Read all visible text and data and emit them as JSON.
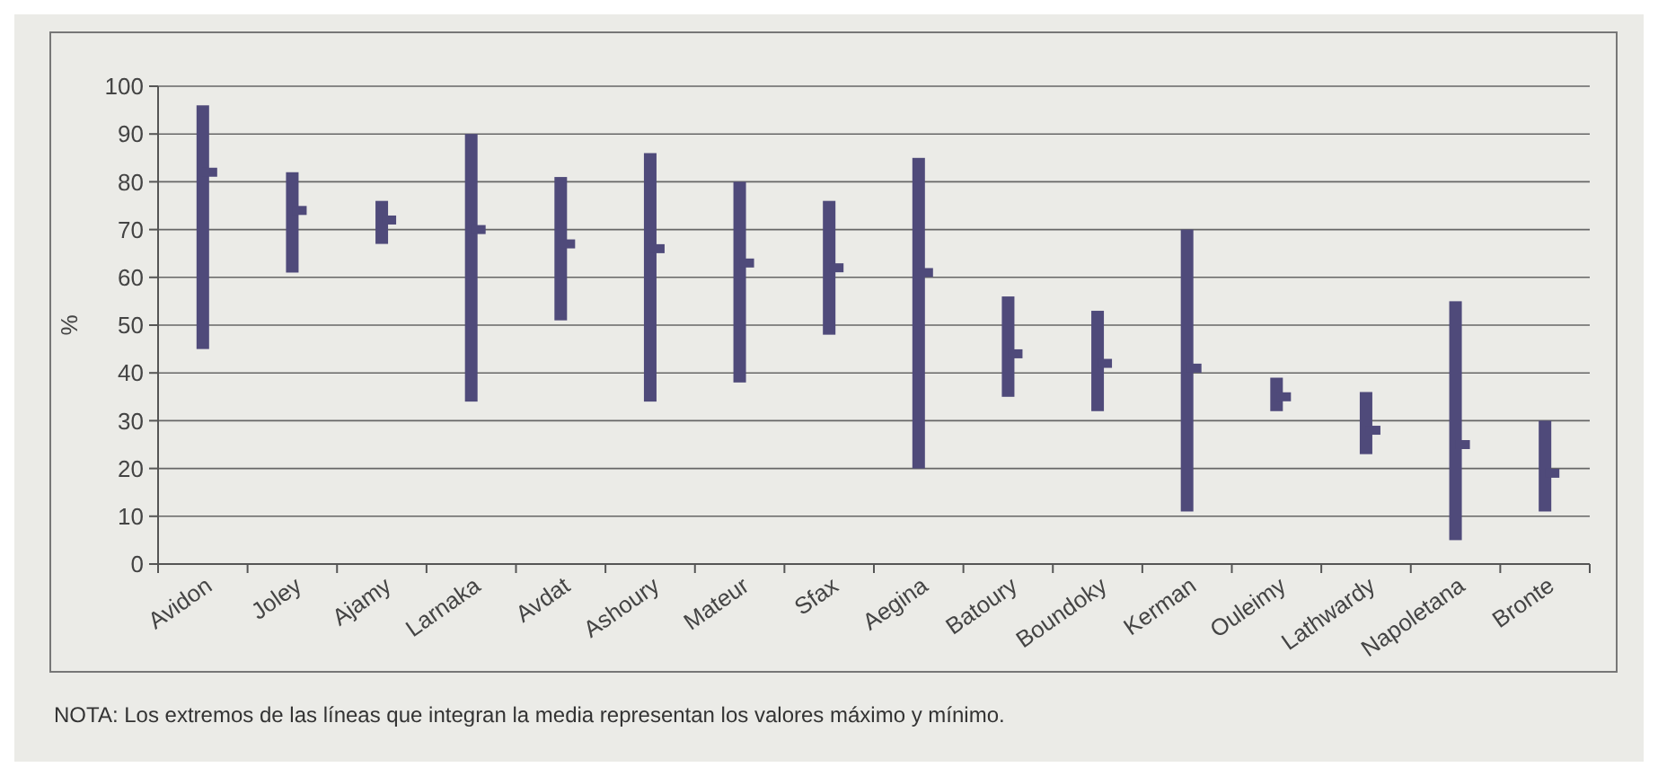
{
  "chart_data": {
    "type": "bar",
    "ylabel": "%",
    "categories": [
      "Avidon",
      "Joley",
      "Ajamy",
      "Larnaka",
      "Avdat",
      "Ashoury",
      "Mateur",
      "Sfax",
      "Aegina",
      "Batoury",
      "Boundoky",
      "Kerman",
      "Ouleimy",
      "Lathwardy",
      "Napoletana",
      "Bronte"
    ],
    "series": [
      {
        "type": "bar",
        "color": "#4f4a7a",
        "base": [
          45,
          61,
          67,
          34,
          51,
          34,
          38,
          48,
          20,
          35,
          32,
          11,
          32,
          23,
          5,
          11
        ],
        "values": [
          51,
          21,
          9,
          56,
          30,
          52,
          42,
          28,
          65,
          21,
          21,
          59,
          7,
          13,
          50,
          19
        ]
      },
      {
        "type": "scatter",
        "marker": "square",
        "color": "#4f4a7a",
        "x": [
          "Avidon",
          "Joley",
          "Ajamy",
          "Larnaka",
          "Avdat",
          "Ashoury",
          "Mateur",
          "Sfax",
          "Aegina",
          "Batoury",
          "Boundoky",
          "Kerman",
          "Ouleimy",
          "Lathwardy",
          "Napoletana",
          "Bronte"
        ],
        "values": [
          82,
          74,
          72,
          70,
          67,
          66,
          63,
          62,
          61,
          44,
          42,
          41,
          35,
          28,
          25,
          19
        ]
      }
    ],
    "ylim": [
      0,
      100
    ],
    "yticks": [
      0,
      10,
      20,
      30,
      40,
      50,
      60,
      70,
      80,
      90,
      100
    ],
    "grid": "y",
    "annotations": [
      "NOTA: Los extremos de las líneas que integran la media representan los valores máximo y mínimo."
    ]
  }
}
